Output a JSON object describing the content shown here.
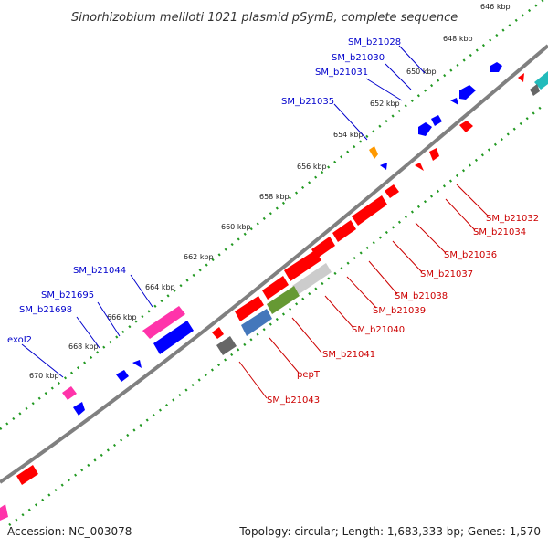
{
  "title": "Sinorhizobium meliloti 1021 plasmid pSymB, complete sequence",
  "footer": {
    "accession": "Accession: NC_003078",
    "topology": "Topology: circular; Length: 1,683,333 bp; Genes: 1,570"
  },
  "ticks": [
    "646 kbp",
    "648 kbp",
    "650 kbp",
    "652 kbp",
    "654 kbp",
    "656 kbp",
    "658 kbp",
    "660 kbp",
    "662 kbp",
    "664 kbp",
    "666 kbp",
    "668 kbp",
    "670 kbp"
  ],
  "genes_forward": [
    "SM_b21028",
    "SM_b21030",
    "SM_b21031",
    "SM_b21035",
    "SM_b21044",
    "SM_b21695",
    "SM_b21698",
    "exoI2"
  ],
  "genes_reverse": [
    "SM_b21032",
    "SM_b21034",
    "SM_b21036",
    "SM_b21037",
    "SM_b21038",
    "SM_b21039",
    "SM_b21040",
    "SM_b21041",
    "pepT",
    "SM_b21043"
  ],
  "colors": {
    "forward": "#0000ff",
    "reverse": "#ff0000",
    "pink": "#ff33aa",
    "orange": "#ff9900",
    "steel": "#4477bb",
    "olive": "#669933",
    "light_grey": "#cccccc",
    "dark_grey": "#666666",
    "teal": "#22bbbb",
    "backbone": "#808080",
    "tick_track": "#229922"
  }
}
